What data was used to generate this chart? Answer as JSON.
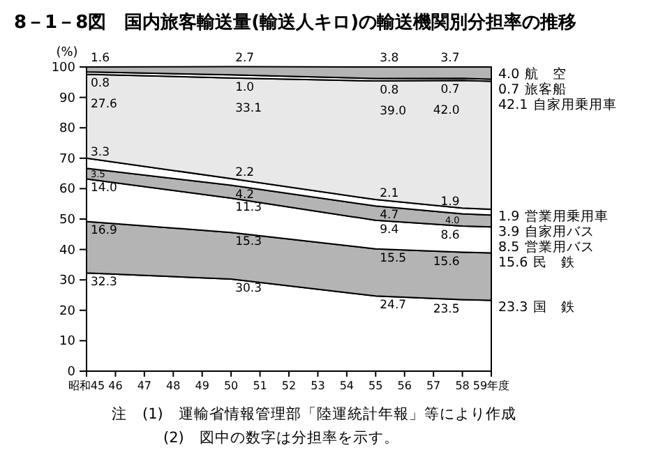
{
  "chart_data": {
    "type": "area",
    "stacked": true,
    "title": "8－1－8図　国内旅客輸送量(輸送人キロ)の輸送機関別分担率の推移",
    "ylabel": "(%)",
    "x": [
      45,
      50,
      55,
      58,
      59
    ],
    "xlim": [
      45,
      59
    ],
    "xticks": [
      {
        "value": 45,
        "label": "昭和45"
      },
      46,
      47,
      48,
      49,
      50,
      51,
      52,
      53,
      54,
      55,
      56,
      57,
      58,
      {
        "value": 59,
        "label": "59年度"
      }
    ],
    "ylim": [
      0,
      100
    ],
    "yticks": [
      0,
      10,
      20,
      30,
      40,
      50,
      60,
      70,
      80,
      90,
      100
    ],
    "series": [
      {
        "name": "国　鉄",
        "color": "#ffffff",
        "values": [
          32.3,
          30.3,
          24.7,
          23.5,
          23.3
        ],
        "value_labels": [
          "32.3",
          "30.3",
          "24.7",
          "23.5",
          "23.3"
        ]
      },
      {
        "name": "民　鉄",
        "color": "#b4b4b4",
        "values": [
          16.9,
          15.3,
          15.5,
          15.6,
          15.6
        ],
        "value_labels": [
          "16.9",
          "15.3",
          "15.5",
          "15.6",
          "15.6"
        ]
      },
      {
        "name": "営業用バス",
        "color": "#ffffff",
        "values": [
          14.0,
          11.3,
          9.4,
          8.6,
          8.5
        ],
        "value_labels": [
          "14.0",
          "11.3",
          "9.4",
          "8.6",
          "8.5"
        ]
      },
      {
        "name": "自家用バス",
        "color": "#b4b4b4",
        "values": [
          3.5,
          4.2,
          4.7,
          4.0,
          3.9
        ],
        "value_labels": [
          "3.5",
          "4.2",
          "4.7",
          "4.0",
          "3.9"
        ]
      },
      {
        "name": "営業用乗用車",
        "color": "#ffffff",
        "values": [
          3.3,
          2.2,
          2.1,
          1.9,
          1.9
        ],
        "value_labels": [
          "3.3",
          "2.2",
          "2.1",
          "1.9",
          "1.9"
        ]
      },
      {
        "name": "自家用乗用車",
        "color": "#e8e8e8",
        "values": [
          27.6,
          33.1,
          39.0,
          42.0,
          42.1
        ],
        "value_labels": [
          "27.6",
          "33.1",
          "39.0",
          "42.0",
          "42.1"
        ]
      },
      {
        "name": "旅客船",
        "color": "#ffffff",
        "values": [
          0.8,
          1.0,
          0.8,
          0.7,
          0.7
        ],
        "value_labels": [
          "0.8",
          "1.0",
          "0.8",
          "0.7",
          "0.7"
        ]
      },
      {
        "name": "航　空",
        "color": "#b4b4b4",
        "values": [
          1.6,
          2.7,
          3.8,
          3.7,
          4.0
        ],
        "value_labels": [
          "1.6",
          "2.7",
          "3.8",
          "3.7",
          "4.0"
        ]
      }
    ],
    "annotations": [
      "注　(1)　運輸省情報管理部「陸運統計年報」等により作成",
      "(2)　図中の数字は分担率を示す。"
    ]
  }
}
